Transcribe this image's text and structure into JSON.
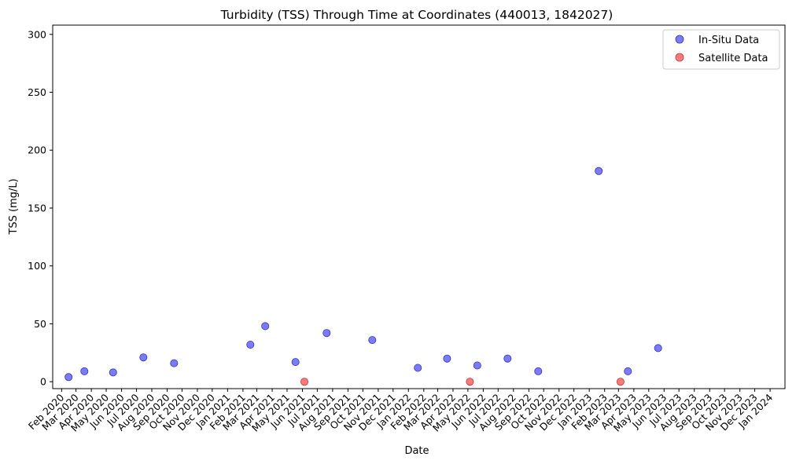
{
  "chart_data": {
    "type": "scatter",
    "title": "Turbidity (TSS) Through Time at Coordinates (440013, 1842027)",
    "xlabel": "Date",
    "ylabel": "TSS (mg/L)",
    "x_axis_type": "date",
    "xlim": [
      "2020-01-14",
      "2024-01-31"
    ],
    "ylim": [
      -6,
      308
    ],
    "yticks": [
      0,
      50,
      100,
      150,
      200,
      250,
      300
    ],
    "xticks": [
      "2020-02-01",
      "2020-03-01",
      "2020-04-01",
      "2020-05-01",
      "2020-06-01",
      "2020-07-01",
      "2020-08-01",
      "2020-09-01",
      "2020-10-01",
      "2020-11-01",
      "2020-12-01",
      "2021-01-01",
      "2021-02-01",
      "2021-03-01",
      "2021-04-01",
      "2021-05-01",
      "2021-06-01",
      "2021-07-01",
      "2021-08-01",
      "2021-09-01",
      "2021-10-01",
      "2021-11-01",
      "2021-12-01",
      "2022-01-01",
      "2022-02-01",
      "2022-03-01",
      "2022-04-01",
      "2022-05-01",
      "2022-06-01",
      "2022-07-01",
      "2022-08-01",
      "2022-09-01",
      "2022-10-01",
      "2022-11-01",
      "2022-12-01",
      "2023-01-01",
      "2023-02-01",
      "2023-03-01",
      "2023-04-01",
      "2023-05-01",
      "2023-06-01",
      "2023-07-01",
      "2023-08-01",
      "2023-09-01",
      "2023-10-01",
      "2023-11-01",
      "2023-12-01",
      "2024-01-01"
    ],
    "xtick_labels": [
      "Feb 2020",
      "Mar 2020",
      "Apr 2020",
      "May 2020",
      "Jun 2020",
      "Jul 2020",
      "Aug 2020",
      "Sep 2020",
      "Oct 2020",
      "Nov 2020",
      "Dec 2020",
      "Jan 2021",
      "Feb 2021",
      "Mar 2021",
      "Apr 2021",
      "May 2021",
      "Jun 2021",
      "Jul 2021",
      "Aug 2021",
      "Sep 2021",
      "Oct 2021",
      "Nov 2021",
      "Dec 2021",
      "Jan 2022",
      "Feb 2022",
      "Mar 2022",
      "Apr 2022",
      "May 2022",
      "Jun 2022",
      "Jul 2022",
      "Aug 2022",
      "Sep 2022",
      "Oct 2022",
      "Nov 2022",
      "Dec 2022",
      "Jan 2023",
      "Feb 2023",
      "Mar 2023",
      "Apr 2023",
      "May 2023",
      "Jun 2023",
      "Jul 2023",
      "Aug 2023",
      "Sep 2023",
      "Oct 2023",
      "Nov 2023",
      "Dec 2023",
      "Jan 2024"
    ],
    "grid": false,
    "legend_position": "top-right",
    "series": [
      {
        "name": "In-Situ Data",
        "color": "#4f4ff0",
        "points": [
          {
            "x": "2020-02-15",
            "y": 4
          },
          {
            "x": "2020-03-18",
            "y": 9
          },
          {
            "x": "2020-05-15",
            "y": 8
          },
          {
            "x": "2020-07-15",
            "y": 21
          },
          {
            "x": "2020-09-15",
            "y": 16
          },
          {
            "x": "2021-02-16",
            "y": 32
          },
          {
            "x": "2021-03-18",
            "y": 48
          },
          {
            "x": "2021-05-18",
            "y": 17
          },
          {
            "x": "2021-07-20",
            "y": 42
          },
          {
            "x": "2021-10-20",
            "y": 36
          },
          {
            "x": "2022-01-20",
            "y": 12
          },
          {
            "x": "2022-03-20",
            "y": 20
          },
          {
            "x": "2022-05-20",
            "y": 14
          },
          {
            "x": "2022-07-20",
            "y": 20
          },
          {
            "x": "2022-09-20",
            "y": 9
          },
          {
            "x": "2023-01-20",
            "y": 182
          },
          {
            "x": "2023-03-20",
            "y": 9
          },
          {
            "x": "2023-05-20",
            "y": 29
          }
        ]
      },
      {
        "name": "Satellite Data",
        "color": "#f05050",
        "points": [
          {
            "x": "2021-06-05",
            "y": 0
          },
          {
            "x": "2022-05-05",
            "y": 0
          },
          {
            "x": "2023-03-05",
            "y": 0
          }
        ]
      }
    ]
  }
}
